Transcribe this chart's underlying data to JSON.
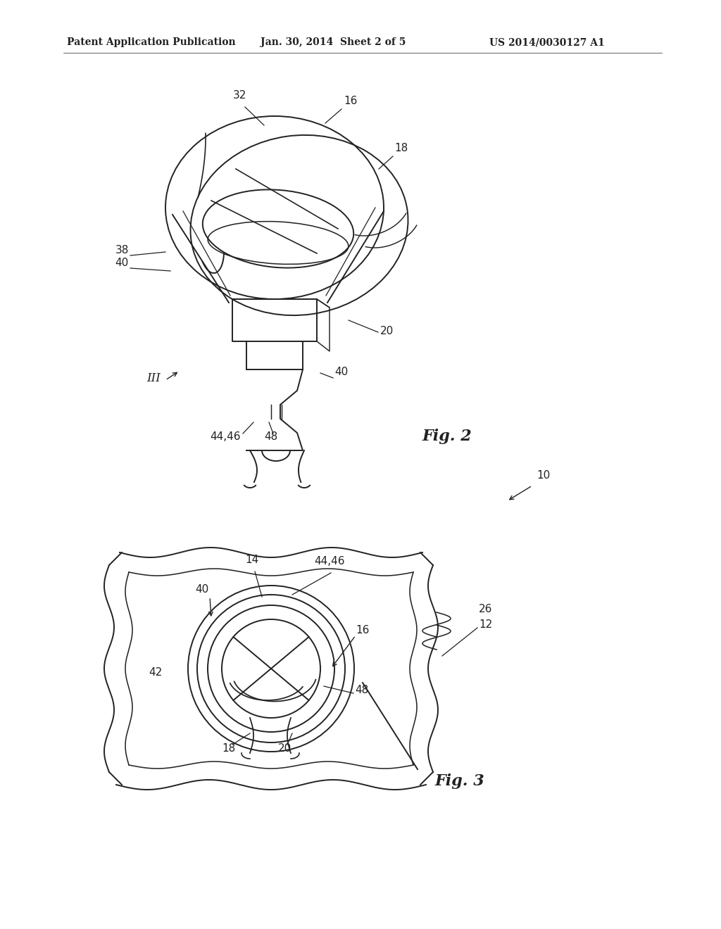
{
  "background_color": "#ffffff",
  "line_color": "#222222",
  "header_text": "Patent Application Publication",
  "header_date": "Jan. 30, 2014  Sheet 2 of 5",
  "header_patent": "US 2014/0030127 A1",
  "fig2_label": "Fig. 2",
  "fig3_label": "Fig. 3",
  "ann_fontsize": 11,
  "header_fontsize": 10,
  "fig_label_fontsize": 16
}
